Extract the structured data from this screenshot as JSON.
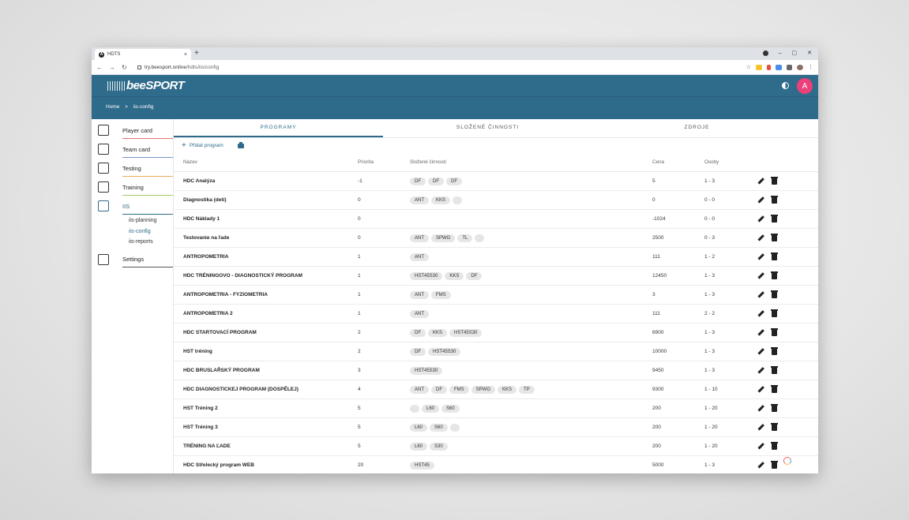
{
  "browser": {
    "tab_title": "HDTS",
    "tab_favicon_letter": "A",
    "url_host": "try.beesport.online",
    "url_path": "/hdts/iis/config",
    "new_tab": "+",
    "close_tab": "×",
    "controls": {
      "minimize": "–",
      "maximize": "▢",
      "close": "✕"
    },
    "nav": {
      "back": "←",
      "forward": "→",
      "reload": "↻"
    },
    "star": "☆",
    "menu": "⋮",
    "extension_icon": "puzzle-icon"
  },
  "app": {
    "logo": "beeSPORT",
    "avatar_letter": "A",
    "colors": {
      "primary": "#2e6a8a",
      "avatar": "#ec407a"
    }
  },
  "breadcrumb": {
    "home": "Home",
    "sep": ">",
    "current": "iis-config"
  },
  "sidebar": {
    "items": [
      {
        "label": "Player card",
        "icon": "player-card-icon"
      },
      {
        "label": "Team card",
        "icon": "team-card-icon"
      },
      {
        "label": "Testing",
        "icon": "testing-icon"
      },
      {
        "label": "Training",
        "icon": "training-icon"
      },
      {
        "label": "IIS",
        "icon": "iis-icon"
      },
      {
        "label": "Settings",
        "icon": "settings-icon"
      }
    ],
    "sub": [
      "iis-planning",
      "iis-config",
      "iis-reports"
    ]
  },
  "tabs": [
    "PROGRAMY",
    "SLOŽENÉ ČINNOSTI",
    "ZDROJE"
  ],
  "toolbar": {
    "add_label": "Přidat program",
    "plus": "+"
  },
  "table": {
    "headers": {
      "name": "Název",
      "priority": "Priorita",
      "activities": "Složené činnosti",
      "price": "Cena",
      "persons": "Osoby"
    },
    "rows": [
      {
        "name": "HDC Analýza",
        "priority": "-1",
        "chips": [
          "DF",
          "DF",
          "DF"
        ],
        "price": "5",
        "persons": "1 - 3"
      },
      {
        "name": "Diagnostika (deti)",
        "priority": "0",
        "chips": [
          "ANT",
          "KKS",
          ""
        ],
        "price": "0",
        "persons": "0 - 0"
      },
      {
        "name": "HDC Náklady 1",
        "priority": "0",
        "chips": [],
        "price": "-1024",
        "persons": "0 - 0"
      },
      {
        "name": "Testovanie na ľade",
        "priority": "0",
        "chips": [
          "ANT",
          "SPWG",
          "TL",
          ""
        ],
        "price": "2500",
        "persons": "0 - 3"
      },
      {
        "name": "ANTROPOMETRIA",
        "priority": "1",
        "chips": [
          "ANT"
        ],
        "price": "111",
        "persons": "1 - 2"
      },
      {
        "name": "HDC TRÉNINGOVO - DIAGNOSTICKÝ PROGRAM",
        "priority": "1",
        "chips": [
          "HST45S30",
          "KKS",
          "DF"
        ],
        "price": "12450",
        "persons": "1 - 3"
      },
      {
        "name": "ANTROPOMETRIA - FYZIOMETRIA",
        "priority": "1",
        "chips": [
          "ANT",
          "FMS"
        ],
        "price": "3",
        "persons": "1 - 3"
      },
      {
        "name": "ANTROPOMETRIA 2",
        "priority": "1",
        "chips": [
          "ANT"
        ],
        "price": "111",
        "persons": "2 - 2"
      },
      {
        "name": "HDC STARTOVACÍ PROGRAM",
        "priority": "2",
        "chips": [
          "DF",
          "KKS",
          "HST45S30"
        ],
        "price": "6900",
        "persons": "1 - 3"
      },
      {
        "name": "HST tréning",
        "priority": "2",
        "chips": [
          "DF",
          "HST45S30"
        ],
        "price": "10000",
        "persons": "1 - 3"
      },
      {
        "name": "HDC BRUSLAŘSKÝ PROGRAM",
        "priority": "3",
        "chips": [
          "HST45S30"
        ],
        "price": "9450",
        "persons": "1 - 3"
      },
      {
        "name": "HDC DIAGNOSTICKEJ PROGRAM (DOSPĚLEJ)",
        "priority": "4",
        "chips": [
          "ANT",
          "DF",
          "FMS",
          "SPWG",
          "KKS",
          "TP"
        ],
        "price": "9300",
        "persons": "1 - 10"
      },
      {
        "name": "HST Tréning 2",
        "priority": "5",
        "chips": [
          "",
          "L60",
          "S60"
        ],
        "price": "200",
        "persons": "1 - 20"
      },
      {
        "name": "HST Tréning 3",
        "priority": "5",
        "chips": [
          "L60",
          "S60",
          ""
        ],
        "price": "200",
        "persons": "1 - 20"
      },
      {
        "name": "TRÉNING NA ĽADE",
        "priority": "5",
        "chips": [
          "L60",
          "S30"
        ],
        "price": "200",
        "persons": "1 - 20"
      },
      {
        "name": "HDC Střelecký program WEB",
        "priority": "20",
        "chips": [
          "HST45"
        ],
        "price": "5000",
        "persons": "1 - 3"
      }
    ]
  }
}
